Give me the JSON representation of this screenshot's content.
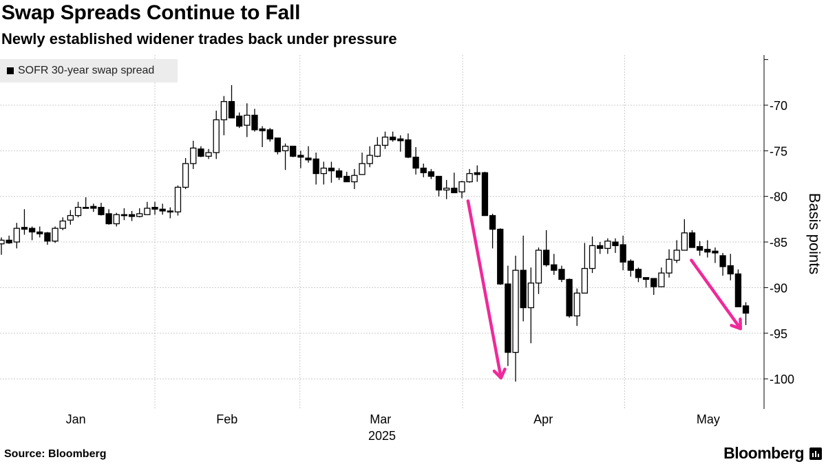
{
  "title": "Swap Spreads Continue to Fall",
  "subtitle": "Newly established widener trades back under pressure",
  "legend": {
    "label": "SOFR 30-year swap spread"
  },
  "source": "Source: Bloomberg",
  "logo": "Bloomberg",
  "colors": {
    "up_fill": "#ffffff",
    "down_fill": "#000000",
    "arrow": "#f0299a",
    "grid": "#c8c8c8"
  },
  "chart_data": {
    "type": "candlestick",
    "title": "Swap Spreads Continue to Fall",
    "ylabel": "Basis points",
    "xlabel": "2025",
    "ylim": [
      -103,
      -65
    ],
    "yticks": [
      -70,
      -75,
      -80,
      -85,
      -90,
      -95,
      -100
    ],
    "ytick_labels": [
      "-70",
      "-75",
      "-80",
      "-85",
      "-90",
      "-95",
      "-100"
    ],
    "x_months": [
      {
        "label": "Jan",
        "at": 9.7
      },
      {
        "label": "Feb",
        "at": 29.4
      },
      {
        "label": "Mar",
        "at": 49.4
      },
      {
        "label": "Apr",
        "at": 70.6
      },
      {
        "label": "May",
        "at": 92.1
      }
    ],
    "x_year_label": {
      "label": "2025",
      "at": 49.6
    },
    "month_boundaries": [
      20,
      38.9,
      60.1,
      81.2
    ],
    "grid": true,
    "legend_position": "top-left",
    "ohlc_fields": [
      "open",
      "high",
      "low",
      "close"
    ],
    "candles": [
      [
        -85.2,
        -84.5,
        -86.4,
        -84.8
      ],
      [
        -84.8,
        -84.3,
        -85.2,
        -85.1
      ],
      [
        -85.0,
        -82.9,
        -85.7,
        -83.5
      ],
      [
        -83.4,
        -81.4,
        -84.2,
        -83.6
      ],
      [
        -83.5,
        -83.3,
        -84.8,
        -83.9
      ],
      [
        -83.9,
        -83.3,
        -84.5,
        -84.1
      ],
      [
        -84.0,
        -83.9,
        -85.3,
        -84.9
      ],
      [
        -84.9,
        -83.3,
        -85.1,
        -83.5
      ],
      [
        -83.5,
        -82.3,
        -83.7,
        -82.7
      ],
      [
        -82.6,
        -81.5,
        -83.1,
        -82.1
      ],
      [
        -82.1,
        -80.6,
        -82.3,
        -81.2
      ],
      [
        -81.2,
        -80.1,
        -81.3,
        -81.3
      ],
      [
        -81.1,
        -80.8,
        -81.7,
        -81.3
      ],
      [
        -81.2,
        -80.7,
        -82.1,
        -82.0
      ],
      [
        -81.9,
        -81.4,
        -83.1,
        -83.0
      ],
      [
        -83.0,
        -81.8,
        -83.3,
        -82.0
      ],
      [
        -82.0,
        -81.3,
        -82.6,
        -82.0
      ],
      [
        -82.0,
        -81.6,
        -82.7,
        -82.2
      ],
      [
        -82.2,
        -81.3,
        -82.3,
        -81.9
      ],
      [
        -82.0,
        -80.6,
        -82.0,
        -81.3
      ],
      [
        -81.2,
        -80.6,
        -82.0,
        -81.4
      ],
      [
        -81.4,
        -80.8,
        -82.0,
        -81.6
      ],
      [
        -81.6,
        -81.2,
        -82.4,
        -81.7
      ],
      [
        -81.7,
        -78.8,
        -82.1,
        -79.0
      ],
      [
        -79.0,
        -75.8,
        -79.2,
        -76.4
      ],
      [
        -76.4,
        -73.9,
        -77.0,
        -74.7
      ],
      [
        -74.8,
        -74.5,
        -75.7,
        -75.6
      ],
      [
        -75.6,
        -74.8,
        -75.9,
        -75.2
      ],
      [
        -75.2,
        -70.6,
        -75.9,
        -71.6
      ],
      [
        -71.6,
        -69.0,
        -73.3,
        -69.6
      ],
      [
        -69.6,
        -67.8,
        -71.4,
        -71.4
      ],
      [
        -71.2,
        -70.8,
        -72.5,
        -72.3
      ],
      [
        -72.2,
        -69.8,
        -73.5,
        -71.1
      ],
      [
        -71.1,
        -70.4,
        -72.9,
        -72.7
      ],
      [
        -72.6,
        -72.3,
        -74.6,
        -72.8
      ],
      [
        -72.7,
        -72.5,
        -74.0,
        -73.7
      ],
      [
        -73.6,
        -73.6,
        -75.4,
        -75.1
      ],
      [
        -75.0,
        -74.2,
        -77.1,
        -74.5
      ],
      [
        -74.5,
        -74.5,
        -75.7,
        -75.6
      ],
      [
        -75.5,
        -75.0,
        -76.9,
        -75.7
      ],
      [
        -75.8,
        -74.5,
        -76.3,
        -76.0
      ],
      [
        -75.9,
        -75.2,
        -78.7,
        -77.5
      ],
      [
        -77.5,
        -76.2,
        -78.7,
        -76.9
      ],
      [
        -76.9,
        -76.2,
        -78.5,
        -77.2
      ],
      [
        -77.2,
        -76.9,
        -78.2,
        -77.9
      ],
      [
        -77.8,
        -77.3,
        -78.4,
        -78.4
      ],
      [
        -78.4,
        -77.0,
        -79.2,
        -77.7
      ],
      [
        -77.6,
        -75.2,
        -77.6,
        -76.4
      ],
      [
        -76.4,
        -74.5,
        -76.8,
        -75.5
      ],
      [
        -75.6,
        -73.5,
        -75.7,
        -74.4
      ],
      [
        -74.4,
        -72.9,
        -74.8,
        -73.5
      ],
      [
        -73.5,
        -72.9,
        -74.0,
        -73.8
      ],
      [
        -73.7,
        -73.3,
        -75.1,
        -73.9
      ],
      [
        -73.8,
        -73.1,
        -75.8,
        -75.7
      ],
      [
        -75.7,
        -74.6,
        -77.6,
        -76.9
      ],
      [
        -76.9,
        -76.4,
        -77.9,
        -77.4
      ],
      [
        -77.3,
        -77.0,
        -78.1,
        -77.8
      ],
      [
        -77.8,
        -77.8,
        -80.0,
        -79.3
      ],
      [
        -79.3,
        -78.2,
        -80.3,
        -79.1
      ],
      [
        -79.1,
        -77.4,
        -79.6,
        -79.6
      ],
      [
        -79.5,
        -78.3,
        -80.2,
        -78.4
      ],
      [
        -78.4,
        -77.0,
        -78.5,
        -77.5
      ],
      [
        -77.4,
        -76.6,
        -78.4,
        -77.6
      ],
      [
        -77.4,
        -77.3,
        -82.1,
        -82.1
      ],
      [
        -82.1,
        -81.9,
        -85.7,
        -83.6
      ],
      [
        -83.6,
        -83.5,
        -89.7,
        -89.6
      ],
      [
        -89.6,
        -87.6,
        -98.6,
        -97.1
      ],
      [
        -97.1,
        -86.5,
        -100.3,
        -88.1
      ],
      [
        -88.1,
        -84.3,
        -93.7,
        -92.2
      ],
      [
        -92.2,
        -87.8,
        -96.1,
        -89.5
      ],
      [
        -89.5,
        -85.6,
        -90.7,
        -85.9
      ],
      [
        -85.9,
        -83.7,
        -87.7,
        -87.5
      ],
      [
        -87.5,
        -86.3,
        -88.6,
        -88.1
      ],
      [
        -88.0,
        -87.6,
        -89.4,
        -89.1
      ],
      [
        -89.1,
        -89.0,
        -93.3,
        -93.1
      ],
      [
        -93.1,
        -90.1,
        -94.2,
        -90.6
      ],
      [
        -90.6,
        -85.1,
        -90.6,
        -87.9
      ],
      [
        -87.9,
        -84.4,
        -88.4,
        -85.4
      ],
      [
        -85.4,
        -85.0,
        -86.3,
        -85.7
      ],
      [
        -85.7,
        -84.6,
        -86.3,
        -84.9
      ],
      [
        -85.0,
        -84.6,
        -86.2,
        -85.4
      ],
      [
        -85.3,
        -84.3,
        -88.1,
        -87.2
      ],
      [
        -87.1,
        -86.9,
        -88.8,
        -88.1
      ],
      [
        -88.0,
        -87.8,
        -89.4,
        -88.9
      ],
      [
        -88.9,
        -88.9,
        -90.0,
        -89.1
      ],
      [
        -89.0,
        -89.0,
        -90.8,
        -89.9
      ],
      [
        -89.9,
        -87.8,
        -89.9,
        -88.4
      ],
      [
        -88.4,
        -85.8,
        -88.9,
        -86.9
      ],
      [
        -87.0,
        -84.8,
        -87.3,
        -85.9
      ],
      [
        -85.9,
        -82.5,
        -85.9,
        -84.0
      ],
      [
        -84.0,
        -83.7,
        -85.6,
        -85.6
      ],
      [
        -85.5,
        -84.9,
        -86.5,
        -85.9
      ],
      [
        -85.8,
        -84.8,
        -86.7,
        -86.1
      ],
      [
        -86.0,
        -85.6,
        -87.3,
        -86.2
      ],
      [
        -86.5,
        -86.2,
        -88.7,
        -87.7
      ],
      [
        -87.6,
        -86.3,
        -89.2,
        -88.5
      ],
      [
        -88.5,
        -88.0,
        -92.1,
        -92.1
      ],
      [
        -92.0,
        -91.6,
        -94.1,
        -92.8
      ]
    ],
    "annotations": [
      {
        "type": "arrow",
        "from": [
          60.8,
          -80.5
        ],
        "to": [
          65.1,
          -99.9
        ]
      },
      {
        "type": "arrow",
        "from": [
          89.9,
          -87.0
        ],
        "to": [
          96.3,
          -94.5
        ]
      }
    ]
  }
}
